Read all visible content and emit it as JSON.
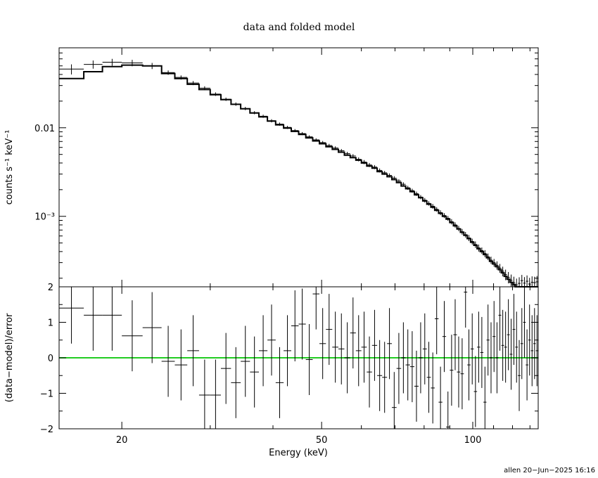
{
  "chart_data": [
    {
      "type": "scatter",
      "panel": "upper",
      "title": "data and folded model",
      "ylabel": "counts s⁻¹ keV⁻¹",
      "xlabel": "",
      "xscale": "log",
      "yscale": "log",
      "xlim": [
        15,
        135
      ],
      "ylim": [
        0.00016,
        0.08
      ],
      "yticks": [
        {
          "value": 0.01,
          "label": "0.01"
        },
        {
          "value": 0.001,
          "label": "10⁻³"
        }
      ],
      "series": [
        {
          "type": "scatter",
          "x_lo": [
            15,
            16.8,
            18.3,
            20.0,
            22.0,
            24.0,
            25.5,
            27.0,
            28.5,
            30.0,
            31.5,
            33.0,
            34.5,
            36.0,
            37.5,
            39.0,
            40.5,
            42.0,
            43.5,
            45.0,
            46.5,
            48.0,
            49.5,
            51.0,
            52.5,
            54.0,
            55.5,
            57.0,
            58.5,
            60.0,
            61.5,
            63.0,
            64.5,
            66.0,
            67.5,
            69.0,
            70.5,
            72.0,
            73.5,
            75.0,
            76.5,
            78.0,
            79.5,
            81.0,
            82.5,
            84.0,
            85.5,
            87.0,
            88.5,
            90.0,
            91.5,
            93.0,
            94.5,
            96.0,
            97.5,
            99.0,
            100.5,
            102.0,
            103.5,
            105.0,
            106.5,
            108.0,
            109.5,
            111.0,
            112.5,
            114.0,
            115.5,
            117.0,
            118.5,
            120.0,
            121.5,
            123.0,
            124.5,
            126.0,
            127.5,
            129.0,
            130.5,
            132.0,
            133.5
          ],
          "x_hi": [
            16.8,
            18.3,
            20.0,
            22.0,
            24.0,
            25.5,
            27.0,
            28.5,
            30.0,
            31.5,
            33.0,
            34.5,
            36.0,
            37.5,
            39.0,
            40.5,
            42.0,
            43.5,
            45.0,
            46.5,
            48.0,
            49.5,
            51.0,
            52.5,
            54.0,
            55.5,
            57.0,
            58.5,
            60.0,
            61.5,
            63.0,
            64.5,
            66.0,
            67.5,
            69.0,
            70.5,
            72.0,
            73.5,
            75.0,
            76.5,
            78.0,
            79.5,
            81.0,
            82.5,
            84.0,
            85.5,
            87.0,
            88.5,
            90.0,
            91.5,
            93.0,
            94.5,
            96.0,
            97.5,
            99.0,
            100.5,
            102.0,
            103.5,
            105.0,
            106.5,
            108.0,
            109.5,
            111.0,
            112.5,
            114.0,
            115.5,
            117.0,
            118.5,
            120.0,
            121.5,
            123.0,
            124.5,
            126.0,
            127.5,
            129.0,
            130.5,
            132.0,
            133.5,
            135.0
          ],
          "y": [
            0.046,
            0.052,
            0.055,
            0.054,
            0.05,
            0.042,
            0.037,
            0.032,
            0.028,
            0.024,
            0.021,
            0.0185,
            0.0165,
            0.0148,
            0.0135,
            0.012,
            0.011,
            0.0101,
            0.0093,
            0.0086,
            0.0079,
            0.0073,
            0.0068,
            0.0063,
            0.0059,
            0.0055,
            0.0051,
            0.0048,
            0.0044,
            0.0041,
            0.0038,
            0.0036,
            0.0033,
            0.0031,
            0.0029,
            0.0027,
            0.0025,
            0.0023,
            0.0021,
            0.00195,
            0.0018,
            0.00165,
            0.00152,
            0.0014,
            0.0013,
            0.0012,
            0.0011,
            0.00102,
            0.00095,
            0.00087,
            0.0008,
            0.00073,
            0.00067,
            0.00062,
            0.00057,
            0.00052,
            0.00048,
            0.00044,
            0.00041,
            0.00038,
            0.00035,
            0.00032,
            0.0003,
            0.00028,
            0.00026,
            0.00024,
            0.00022,
            0.000205,
            0.00019,
            0.000178,
            0.000168,
            0.000175,
            0.000188,
            0.000176,
            0.000185,
            0.000172,
            0.00018,
            0.000178,
            0.000182
          ],
          "y_err": [
            0.006,
            0.0055,
            0.005,
            0.0045,
            0.004,
            0.0024,
            0.002,
            0.0017,
            0.0014,
            0.0011,
            0.0009,
            0.0008,
            0.0007,
            0.0006,
            0.00055,
            0.0005,
            0.00045,
            0.0004,
            0.00037,
            0.00034,
            0.00032,
            0.0003,
            0.00029,
            0.00028,
            0.00027,
            0.00026,
            0.00025,
            0.00024,
            0.00023,
            0.00022,
            0.0002,
            0.00019,
            0.00017,
            0.00016,
            0.00015,
            0.00014,
            0.00013,
            0.00012,
            0.00011,
            0.0001,
            0.0001,
            9e-05,
            9e-05,
            8e-05,
            8e-05,
            7e-05,
            7e-05,
            6.5e-05,
            6e-05,
            6e-05,
            5.5e-05,
            5e-05,
            5e-05,
            4.5e-05,
            4.5e-05,
            4e-05,
            4e-05,
            4e-05,
            3.5e-05,
            3.5e-05,
            3e-05,
            3e-05,
            3e-05,
            3e-05,
            3e-05,
            3e-05,
            3e-05,
            3e-05,
            3e-05,
            3e-05,
            3e-05,
            3e-05,
            3e-05,
            3e-05,
            3e-05,
            3e-05,
            3e-05,
            3e-05,
            3e-05
          ]
        },
        {
          "type": "step",
          "x_edges": [
            15,
            16.8,
            18.3,
            20.0,
            22.0,
            24.0,
            25.5,
            27.0,
            28.5,
            30.0,
            31.5,
            33.0,
            34.5,
            36.0,
            37.5,
            39.0,
            40.5,
            42.0,
            43.5,
            45.0,
            46.5,
            48.0,
            49.5,
            51.0,
            52.5,
            54.0,
            55.5,
            57.0,
            58.5,
            60.0,
            61.5,
            63.0,
            64.5,
            66.0,
            67.5,
            69.0,
            70.5,
            72.0,
            73.5,
            75.0,
            76.5,
            78.0,
            79.5,
            81.0,
            82.5,
            84.0,
            85.5,
            87.0,
            88.5,
            90.0,
            91.5,
            93.0,
            94.5,
            96.0,
            97.5,
            99.0,
            100.5,
            102.0,
            103.5,
            105.0,
            106.5,
            108.0,
            109.5,
            111.0,
            112.5,
            114.0,
            115.5,
            117.0,
            118.5,
            120.0,
            121.5,
            123.0,
            124.5,
            126.0,
            127.5,
            129.0,
            130.5,
            132.0,
            133.5,
            135.0
          ],
          "y": [
            0.036,
            0.043,
            0.049,
            0.051,
            0.05,
            0.041,
            0.036,
            0.031,
            0.027,
            0.0236,
            0.0208,
            0.0184,
            0.0164,
            0.0147,
            0.0133,
            0.0119,
            0.0108,
            0.0099,
            0.0091,
            0.0084,
            0.0077,
            0.0071,
            0.0066,
            0.0061,
            0.0057,
            0.0053,
            0.0049,
            0.0046,
            0.0043,
            0.004,
            0.0037,
            0.0035,
            0.0032,
            0.003,
            0.0028,
            0.0026,
            0.0024,
            0.0022,
            0.00205,
            0.0019,
            0.00175,
            0.00162,
            0.00149,
            0.00137,
            0.00127,
            0.00117,
            0.00108,
            0.001,
            0.00093,
            0.00085,
            0.00078,
            0.00072,
            0.00066,
            0.00061,
            0.00056,
            0.00051,
            0.00047,
            0.00043,
            0.0004,
            0.00037,
            0.00034,
            0.00031,
            0.00029,
            0.00027,
            0.00025,
            0.00023,
            0.00021,
            0.000195,
            0.00018,
            0.00017,
            0.00016,
            0.00016,
            0.00016,
            0.00016,
            0.00016,
            0.00016,
            0.00016,
            0.00016,
            0.00016
          ]
        }
      ]
    },
    {
      "type": "scatter",
      "panel": "lower",
      "ylabel": "(data−model)/error",
      "xlabel": "Energy (keV)",
      "xscale": "log",
      "xlim": [
        15,
        135
      ],
      "ylim": [
        -2,
        2
      ],
      "xticks": [
        {
          "value": 20,
          "label": "20"
        },
        {
          "value": 50,
          "label": "50"
        },
        {
          "value": 100,
          "label": "100"
        }
      ],
      "yticks": [
        {
          "value": -2,
          "label": "−2"
        },
        {
          "value": -1,
          "label": "−1"
        },
        {
          "value": 0,
          "label": "0"
        },
        {
          "value": 1,
          "label": "1"
        },
        {
          "value": 2,
          "label": "2"
        }
      ],
      "reference_line": {
        "y": 0,
        "color": "#22cc22"
      },
      "series": [
        {
          "type": "scatter",
          "x_lo": [
            15,
            16.8,
            18.3,
            20.0,
            22.0,
            24.0,
            25.5,
            27.0,
            28.5,
            30.0,
            31.5,
            33.0,
            34.5,
            36.0,
            37.5,
            39.0,
            40.5,
            42.0,
            43.5,
            45.0,
            46.5,
            48.0,
            49.5,
            51.0,
            52.5,
            54.0,
            55.5,
            57.0,
            58.5,
            60.0,
            61.5,
            63.0,
            64.5,
            66.0,
            67.5,
            69.0,
            70.5,
            72.0,
            73.5,
            75.0,
            76.5,
            78.0,
            79.5,
            81.0,
            82.5,
            84.0,
            85.5,
            87.0,
            88.5,
            90.0,
            91.5,
            93.0,
            94.5,
            96.0,
            97.5,
            99.0,
            100.5,
            102.0,
            103.5,
            105.0,
            106.5,
            108.0,
            109.5,
            111.0,
            112.5,
            114.0,
            115.5,
            117.0,
            118.5,
            120.0,
            121.5,
            123.0,
            124.5,
            126.0,
            127.5,
            129.0,
            130.5,
            132.0,
            133.5
          ],
          "x_hi": [
            16.8,
            18.3,
            20.0,
            22.0,
            24.0,
            25.5,
            27.0,
            28.5,
            30.0,
            31.5,
            33.0,
            34.5,
            36.0,
            37.5,
            39.0,
            40.5,
            42.0,
            43.5,
            45.0,
            46.5,
            48.0,
            49.5,
            51.0,
            52.5,
            54.0,
            55.5,
            57.0,
            58.5,
            60.0,
            61.5,
            63.0,
            64.5,
            66.0,
            67.5,
            69.0,
            70.5,
            72.0,
            73.5,
            75.0,
            76.5,
            78.0,
            79.5,
            81.0,
            82.5,
            84.0,
            85.5,
            87.0,
            88.5,
            90.0,
            91.5,
            93.0,
            94.5,
            96.0,
            97.5,
            99.0,
            100.5,
            102.0,
            103.5,
            105.0,
            106.5,
            108.0,
            109.5,
            111.0,
            112.5,
            114.0,
            115.5,
            117.0,
            118.5,
            120.0,
            121.5,
            123.0,
            124.5,
            126.0,
            127.5,
            129.0,
            130.5,
            132.0,
            133.5,
            135.0
          ],
          "y": [
            1.4,
            1.2,
            1.2,
            0.62,
            0.85,
            -0.1,
            -0.2,
            0.2,
            -1.05,
            -1.05,
            -0.3,
            -0.7,
            -0.1,
            -0.4,
            0.2,
            0.5,
            -0.7,
            0.2,
            0.9,
            0.95,
            -0.05,
            1.8,
            0.4,
            0.8,
            0.3,
            0.25,
            0.0,
            0.7,
            0.2,
            0.3,
            -0.4,
            0.35,
            -0.5,
            -0.55,
            0.4,
            -1.4,
            -0.3,
            0.0,
            -0.2,
            -0.25,
            -0.8,
            0.0,
            0.25,
            -0.55,
            -0.85,
            1.1,
            -1.25,
            0.6,
            -1.95,
            -0.35,
            0.65,
            -0.4,
            -0.45,
            1.85,
            -0.2,
            0.25,
            -0.95,
            0.3,
            0.15,
            -1.25,
            0.5,
            0.0,
            0.6,
            0.0,
            1.2,
            0.35,
            0.3,
            0.65,
            0.1,
            0.8,
            0.3,
            -0.5,
            0.4,
            1.0,
            -0.2,
            0.5,
            0.2,
            0.4,
            0.2
          ],
          "y_err": [
            1.0,
            1.0,
            1.0,
            1.0,
            1.0,
            1.0,
            1.0,
            1.0,
            1.0,
            1.0,
            1.0,
            1.0,
            1.0,
            1.0,
            1.0,
            1.0,
            1.0,
            1.0,
            1.0,
            1.0,
            1.0,
            1.0,
            1.0,
            1.0,
            1.0,
            1.0,
            1.0,
            1.0,
            1.0,
            1.0,
            1.0,
            1.0,
            1.0,
            1.0,
            1.0,
            1.0,
            1.0,
            1.0,
            1.0,
            1.0,
            1.0,
            1.0,
            1.0,
            1.0,
            1.0,
            1.0,
            1.0,
            1.0,
            1.0,
            1.0,
            1.0,
            1.0,
            1.0,
            1.0,
            1.0,
            1.0,
            1.0,
            1.0,
            1.0,
            1.0,
            1.0,
            1.0,
            1.0,
            1.0,
            1.0,
            1.0,
            1.0,
            1.0,
            1.0,
            1.0,
            1.0,
            1.0,
            1.0,
            1.0,
            1.0,
            1.0,
            1.0,
            1.0,
            1.0
          ]
        }
      ]
    }
  ],
  "footer": {
    "text": "allen 20−Jun−2025 16:16"
  }
}
